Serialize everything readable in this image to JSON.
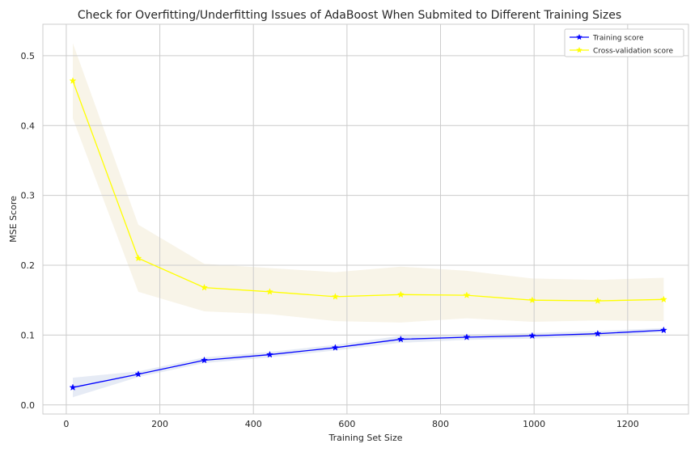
{
  "chart_data": {
    "type": "line",
    "title": "Check for Overfitting/Underfitting Issues of AdaBoost When Submited to Different Training Sizes",
    "xlabel": "Training Set Size",
    "ylabel": "MSE Score",
    "xlim": [
      -50,
      1330
    ],
    "ylim": [
      -0.013,
      0.545
    ],
    "xticks": [
      0,
      200,
      400,
      600,
      800,
      1000,
      1200
    ],
    "yticks": [
      0.0,
      0.1,
      0.2,
      0.3,
      0.4,
      0.5
    ],
    "xtick_labels": [
      "0",
      "200",
      "400",
      "600",
      "800",
      "1000",
      "1200"
    ],
    "ytick_labels": [
      "0.0",
      "0.1",
      "0.2",
      "0.3",
      "0.4",
      "0.5"
    ],
    "grid": true,
    "legend_position": "top-right",
    "x": [
      14,
      154,
      295,
      435,
      575,
      715,
      856,
      996,
      1136,
      1277
    ],
    "series": [
      {
        "name": "Training score",
        "color": "#0000ff",
        "marker": "star",
        "values": [
          0.025,
          0.044,
          0.064,
          0.072,
          0.082,
          0.094,
          0.097,
          0.099,
          0.102,
          0.107
        ],
        "band_lower": [
          0.011,
          0.04,
          0.06,
          0.068,
          0.078,
          0.089,
          0.093,
          0.095,
          0.098,
          0.104
        ],
        "band_upper": [
          0.039,
          0.048,
          0.068,
          0.076,
          0.086,
          0.099,
          0.101,
          0.103,
          0.106,
          0.11
        ],
        "band_color": "#e6ebf5"
      },
      {
        "name": "Cross-validation score",
        "color": "#ffff00",
        "marker": "star",
        "values": [
          0.464,
          0.21,
          0.168,
          0.162,
          0.155,
          0.158,
          0.157,
          0.15,
          0.149,
          0.151
        ],
        "band_lower": [
          0.41,
          0.162,
          0.134,
          0.13,
          0.12,
          0.118,
          0.124,
          0.119,
          0.121,
          0.12
        ],
        "band_upper": [
          0.518,
          0.258,
          0.202,
          0.196,
          0.19,
          0.198,
          0.192,
          0.181,
          0.179,
          0.182
        ],
        "band_color": "#f8f4e8"
      }
    ]
  }
}
